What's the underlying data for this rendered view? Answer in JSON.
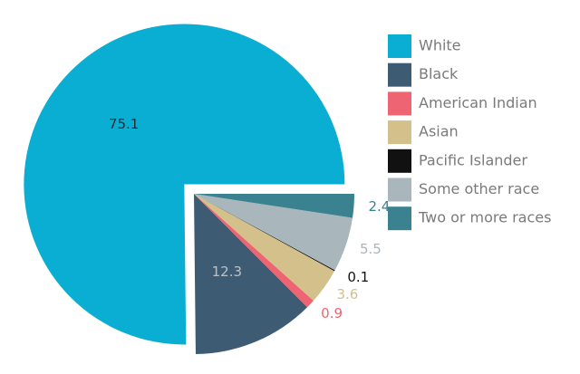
{
  "chart_data": {
    "type": "pie",
    "categories": [
      "White",
      "Black",
      "American Indian",
      "Asian",
      "Pacific Islander",
      "Some other race",
      "Two or more races"
    ],
    "values": [
      75.1,
      12.3,
      0.9,
      3.6,
      0.1,
      5.5,
      2.4
    ],
    "colors": [
      "#0aaed2",
      "#3e5b74",
      "#ef6473",
      "#d3c08b",
      "#111111",
      "#a9b6bc",
      "#3b8290"
    ],
    "legend": "right"
  }
}
